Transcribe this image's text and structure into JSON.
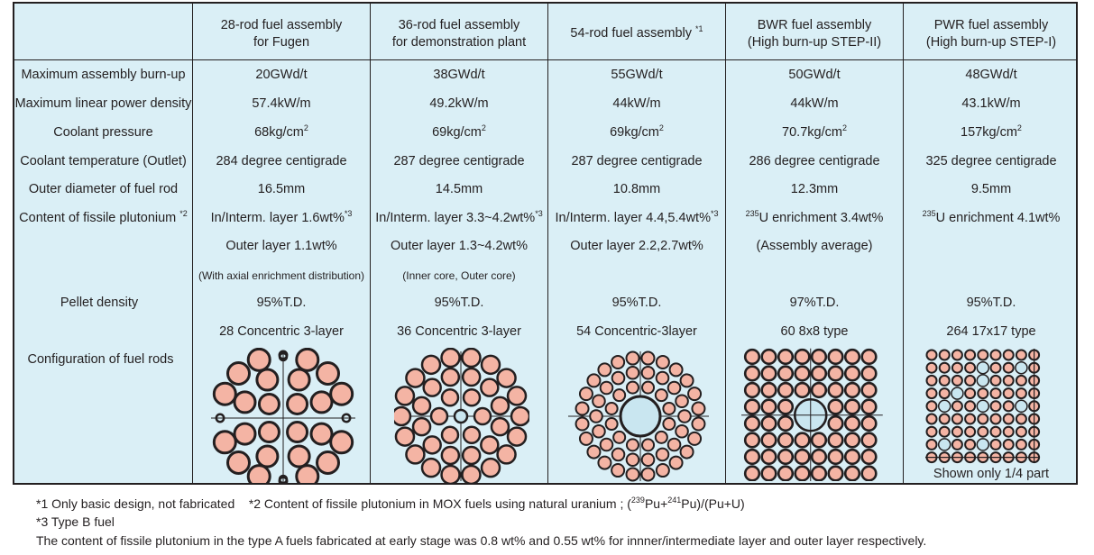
{
  "columns": [
    {
      "line1": "28-rod fuel assembly",
      "line2": "for Fugen"
    },
    {
      "line1": "36-rod fuel assembly",
      "line2": "for demonstration plant"
    },
    {
      "line1": "54-rod fuel assembly",
      "note": "*1"
    },
    {
      "line1": "BWR fuel assembly",
      "line2": "(High burn-up STEP-II)"
    },
    {
      "line1": "PWR fuel assembly",
      "line2": "(High burn-up STEP-I)"
    }
  ],
  "row_labels": {
    "burnup": "Maximum assembly burn-up",
    "linear_power": "Maximum linear power density",
    "pressure": "Coolant pressure",
    "temperature": "Coolant temperature (Outlet)",
    "diameter": "Outer diameter of fuel rod",
    "plutonium": "Content of fissile plutonium",
    "plutonium_note": "*2",
    "pellet": "Pellet density",
    "config": "Configuration of fuel rods"
  },
  "burnup": [
    "20GWd/t",
    "38GWd/t",
    "55GWd/t",
    "50GWd/t",
    "48GWd/t"
  ],
  "linear_power": [
    "57.4kW/m",
    "49.2kW/m",
    "44kW/m",
    "44kW/m",
    "43.1kW/m"
  ],
  "pressure": [
    {
      "value": "68kg/cm",
      "sup": "2"
    },
    {
      "value": "69kg/cm",
      "sup": "2"
    },
    {
      "value": "69kg/cm",
      "sup": "2"
    },
    {
      "value": "70.7kg/cm",
      "sup": "2"
    },
    {
      "value": "157kg/cm",
      "sup": "2"
    }
  ],
  "temperature": [
    "284 degree centigrade",
    "287 degree centigrade",
    "287 degree centigrade",
    "286 degree centigrade",
    "325 degree centigrade"
  ],
  "diameter": [
    "16.5mm",
    "14.5mm",
    "10.8mm",
    "12.3mm",
    "9.5mm"
  ],
  "plutonium_line1": [
    {
      "pre": "",
      "text": "In/Interm. layer 1.6wt%",
      "sup": "*3"
    },
    {
      "pre": "",
      "text": "In/Interm. layer 3.3~4.2wt%",
      "sup": "*3"
    },
    {
      "pre": "",
      "text": "In/Interm. layer 4.4,5.4wt%",
      "sup": "*3"
    },
    {
      "pre": "235",
      "text": "U enrichment 3.4wt%",
      "sup": ""
    },
    {
      "pre": "235",
      "text": "U enrichment 4.1wt%",
      "sup": ""
    }
  ],
  "plutonium_line2": [
    "Outer layer 1.1wt%",
    "Outer layer 1.3~4.2wt%",
    "Outer layer 2.2,2.7wt%",
    "(Assembly average)",
    ""
  ],
  "plutonium_line3": [
    "(With axial enrichment distribution)",
    "(Inner core, Outer core)",
    "",
    "",
    ""
  ],
  "pellet": [
    "95%T.D.",
    "95%T.D.",
    "95%T.D.",
    "97%T.D.",
    "95%T.D."
  ],
  "config": [
    "28 Concentric 3-layer",
    "36 Concentric 3-layer",
    "54 Concentric-3layer",
    "60 8x8 type",
    "264 17x17 type"
  ],
  "pwr_caption": "Shown only 1/4 part",
  "colors": {
    "background": "#daeff6",
    "fuel_rod": "#f4b4a4",
    "water_rod": "#c9e6f0",
    "line": "#231f20"
  },
  "footnotes": {
    "note1": "*1 Only basic design, not fabricated",
    "note2_pre": "*2 Content of fissile plutonium in MOX fuels using natural uranium ; (",
    "note2_sup1": "239",
    "note2_mid": "Pu+",
    "note2_sup2": "241",
    "note2_post": "Pu)/(Pu+U)",
    "note3": "*3 Type B fuel",
    "note4": "The content of fissile plutonium in the type A fuels fabricated at early stage was 0.8 wt% and 0.55 wt% for innner/intermediate layer and outer layer respectively."
  }
}
